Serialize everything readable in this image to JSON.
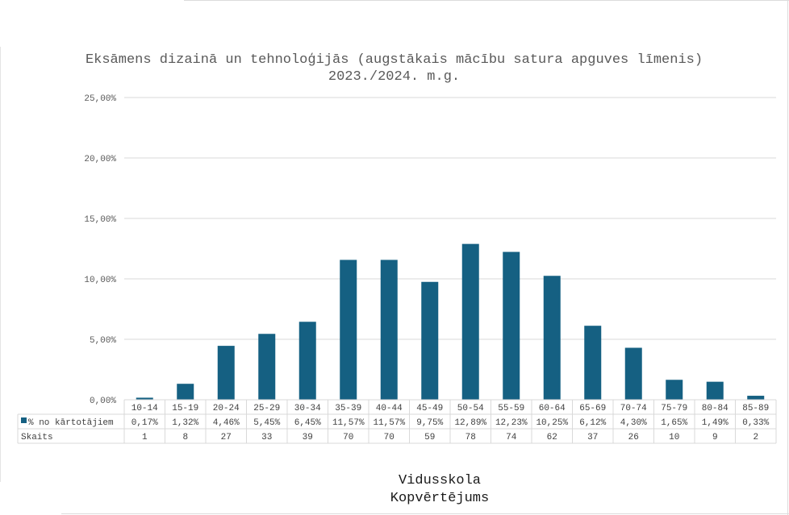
{
  "chart_data": {
    "type": "bar",
    "title": "Eksāmens dizainā un tehnoloģijās (augstākais mācību satura apguves līmenis) 2023./2024. m.g.",
    "categories": [
      "10-14",
      "15-19",
      "20-24",
      "25-29",
      "30-34",
      "35-39",
      "40-44",
      "45-49",
      "50-54",
      "55-59",
      "60-64",
      "65-69",
      "70-74",
      "75-79",
      "80-84",
      "85-89"
    ],
    "series": [
      {
        "name": "% no kārtotājiem",
        "values": [
          0.17,
          1.32,
          4.46,
          5.45,
          6.45,
          11.57,
          11.57,
          9.75,
          12.89,
          12.23,
          10.25,
          6.12,
          4.3,
          1.65,
          1.49,
          0.33
        ],
        "labels": [
          "0,17%",
          "1,32%",
          "4,46%",
          "5,45%",
          "6,45%",
          "11,57%",
          "11,57%",
          "9,75%",
          "12,89%",
          "12,23%",
          "10,25%",
          "6,12%",
          "4,30%",
          "1,65%",
          "1,49%",
          "0,33%"
        ],
        "color": "#156082"
      }
    ],
    "table_rows": [
      {
        "name": "Skaits",
        "values": [
          "1",
          "8",
          "27",
          "33",
          "39",
          "70",
          "70",
          "59",
          "78",
          "74",
          "62",
          "37",
          "26",
          "10",
          "9",
          "2"
        ]
      }
    ],
    "yticks": [
      0,
      5,
      10,
      15,
      20,
      25
    ],
    "ytick_labels": [
      "0,00%",
      "5,00%",
      "10,00%",
      "15,00%",
      "20,00%",
      "25,00%"
    ],
    "ylim": [
      0,
      25
    ],
    "grid": true,
    "legend": "in data table",
    "xlabel_lines": [
      "Vidusskola",
      "Kopvērtējums"
    ]
  }
}
